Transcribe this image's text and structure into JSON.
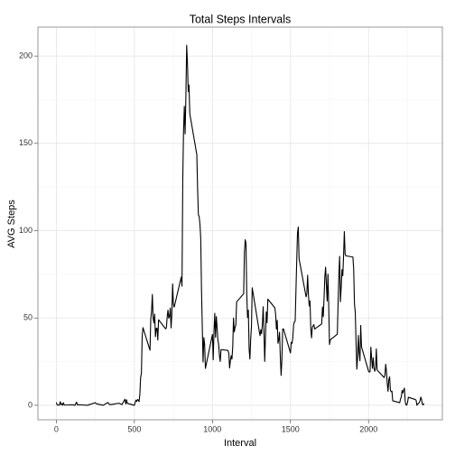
{
  "chart_data": {
    "type": "line",
    "title": "Total Steps Intervals",
    "x_label": "Interval",
    "y_label": "AVG Steps",
    "color": "#000000",
    "grid": true,
    "xlim": [
      -118,
      2473
    ],
    "ylim": [
      -8.3,
      216.6
    ],
    "xticks": [
      0,
      500,
      1000,
      1500,
      2000
    ],
    "yticks": [
      0,
      50,
      100,
      150,
      200
    ],
    "xticks_minor": [
      250,
      750,
      1250,
      1750,
      2250
    ],
    "yticks_minor": [
      25,
      75,
      125,
      175
    ],
    "x": [
      0,
      5,
      10,
      15,
      20,
      25,
      30,
      35,
      40,
      45,
      50,
      55,
      100,
      110,
      120,
      125,
      130,
      135,
      150,
      200,
      250,
      255,
      300,
      330,
      340,
      350,
      400,
      420,
      440,
      445,
      450,
      455,
      500,
      505,
      510,
      515,
      520,
      525,
      530,
      535,
      540,
      545,
      550,
      555,
      600,
      605,
      610,
      615,
      620,
      625,
      630,
      635,
      640,
      645,
      650,
      655,
      700,
      705,
      710,
      715,
      720,
      725,
      730,
      735,
      740,
      745,
      750,
      755,
      800,
      805,
      810,
      815,
      820,
      825,
      830,
      835,
      840,
      845,
      850,
      855,
      900,
      905,
      910,
      915,
      920,
      925,
      930,
      935,
      940,
      945,
      950,
      955,
      1000,
      1005,
      1010,
      1015,
      1020,
      1025,
      1030,
      1035,
      1040,
      1045,
      1050,
      1055,
      1100,
      1105,
      1110,
      1115,
      1120,
      1125,
      1130,
      1135,
      1140,
      1145,
      1150,
      1155,
      1200,
      1205,
      1210,
      1215,
      1220,
      1225,
      1230,
      1235,
      1240,
      1245,
      1250,
      1255,
      1300,
      1305,
      1310,
      1315,
      1320,
      1325,
      1330,
      1335,
      1340,
      1345,
      1350,
      1355,
      1400,
      1405,
      1410,
      1415,
      1420,
      1425,
      1430,
      1435,
      1440,
      1445,
      1450,
      1455,
      1500,
      1505,
      1510,
      1515,
      1520,
      1525,
      1530,
      1535,
      1540,
      1545,
      1550,
      1555,
      1600,
      1605,
      1610,
      1615,
      1620,
      1625,
      1630,
      1635,
      1640,
      1645,
      1650,
      1655,
      1700,
      1705,
      1710,
      1715,
      1720,
      1725,
      1730,
      1735,
      1740,
      1745,
      1750,
      1755,
      1800,
      1805,
      1810,
      1815,
      1820,
      1825,
      1830,
      1835,
      1840,
      1845,
      1850,
      1855,
      1900,
      1905,
      1910,
      1915,
      1920,
      1925,
      1930,
      1935,
      1940,
      1945,
      1950,
      1955,
      2000,
      2005,
      2010,
      2015,
      2020,
      2025,
      2030,
      2035,
      2040,
      2045,
      2050,
      2055,
      2100,
      2105,
      2110,
      2115,
      2120,
      2125,
      2130,
      2135,
      2140,
      2145,
      2150,
      2155,
      2200,
      2205,
      2210,
      2215,
      2220,
      2225,
      2230,
      2235,
      2240,
      2245,
      2250,
      2255,
      2300,
      2305,
      2310,
      2315,
      2320,
      2325,
      2330,
      2335,
      2340,
      2345,
      2350,
      2355
    ],
    "values": [
      1.7,
      0.3,
      0.1,
      0.2,
      0.1,
      2.1,
      0.5,
      0.9,
      0,
      1.5,
      0.3,
      0.1,
      0.3,
      0.2,
      0,
      1.1,
      1.8,
      0.2,
      0.3,
      0,
      1.5,
      0.9,
      0,
      1.6,
      0.5,
      0.4,
      1.2,
      0.4,
      3.5,
      0.8,
      3.1,
      1.1,
      0,
      1.6,
      3.0,
      2.2,
      3.3,
      3.0,
      2.1,
      6.1,
      16.0,
      18.3,
      39.5,
      44.5,
      31.5,
      49.3,
      53.8,
      63.5,
      50.0,
      47.1,
      52.2,
      39.3,
      44.0,
      44.2,
      37.4,
      49.0,
      43.8,
      44.4,
      50.5,
      54.5,
      49.9,
      51.0,
      55.7,
      44.3,
      52.3,
      69.5,
      57.8,
      56.2,
      73.4,
      68.2,
      129.4,
      157.5,
      171.2,
      155.4,
      177.3,
      206.2,
      195.9,
      179.6,
      183.4,
      167.0,
      143.5,
      124.0,
      109.1,
      108.1,
      103.7,
      96.0,
      66.2,
      45.2,
      24.8,
      38.8,
      35.0,
      21.1,
      40.6,
      26.1,
      42.4,
      52.7,
      38.9,
      50.8,
      44.3,
      37.4,
      34.7,
      28.3,
      25.1,
      31.9,
      31.4,
      29.7,
      21.3,
      25.5,
      28.4,
      26.5,
      33.3,
      50.0,
      42.0,
      44.6,
      46.0,
      59.2,
      63.9,
      87.7,
      94.8,
      92.8,
      63.4,
      50.2,
      54.5,
      32.4,
      26.5,
      37.7,
      45.1,
      67.3,
      42.3,
      39.9,
      43.3,
      41.0,
      46.2,
      56.4,
      42.8,
      25.1,
      40.0,
      53.5,
      47.3,
      60.8,
      55.8,
      52.0,
      43.6,
      48.7,
      35.5,
      37.5,
      41.8,
      27.5,
      17.1,
      26.1,
      43.6,
      43.8,
      30.0,
      36.1,
      35.5,
      38.8,
      46.0,
      47.8,
      48.1,
      65.3,
      82.9,
      98.7,
      102.1,
      84.0,
      62.1,
      64.1,
      74.5,
      63.2,
      56.9,
      59.8,
      43.9,
      38.6,
      44.7,
      45.5,
      46.2,
      43.7,
      46.6,
      56.3,
      50.7,
      61.2,
      73.4,
      79.1,
      68.9,
      59.7,
      75.1,
      56.5,
      34.8,
      37.5,
      40.7,
      58.0,
      74.7,
      85.3,
      59.3,
      67.8,
      77.7,
      74.2,
      85.3,
      99.5,
      86.6,
      85.6,
      84.9,
      77.8,
      58.0,
      53.4,
      36.3,
      20.7,
      27.4,
      40.0,
      30.2,
      25.5,
      45.7,
      33.5,
      19.6,
      19.0,
      19.3,
      33.3,
      26.8,
      21.2,
      27.3,
      21.3,
      19.5,
      21.3,
      32.3,
      20.2,
      15.9,
      17.2,
      23.5,
      19.2,
      12.5,
      8.0,
      14.7,
      16.3,
      8.7,
      7.8,
      8.1,
      2.6,
      1.5,
      3.7,
      4.8,
      8.5,
      7.1,
      8.7,
      9.8,
      2.2,
      0.3,
      0.1,
      1.6,
      4.6,
      3.3,
      2.8,
      0,
      0.8,
      1.0,
      1.6,
      2.6,
      4.7,
      3.3,
      0.6,
      0.2,
      1.1
    ]
  }
}
